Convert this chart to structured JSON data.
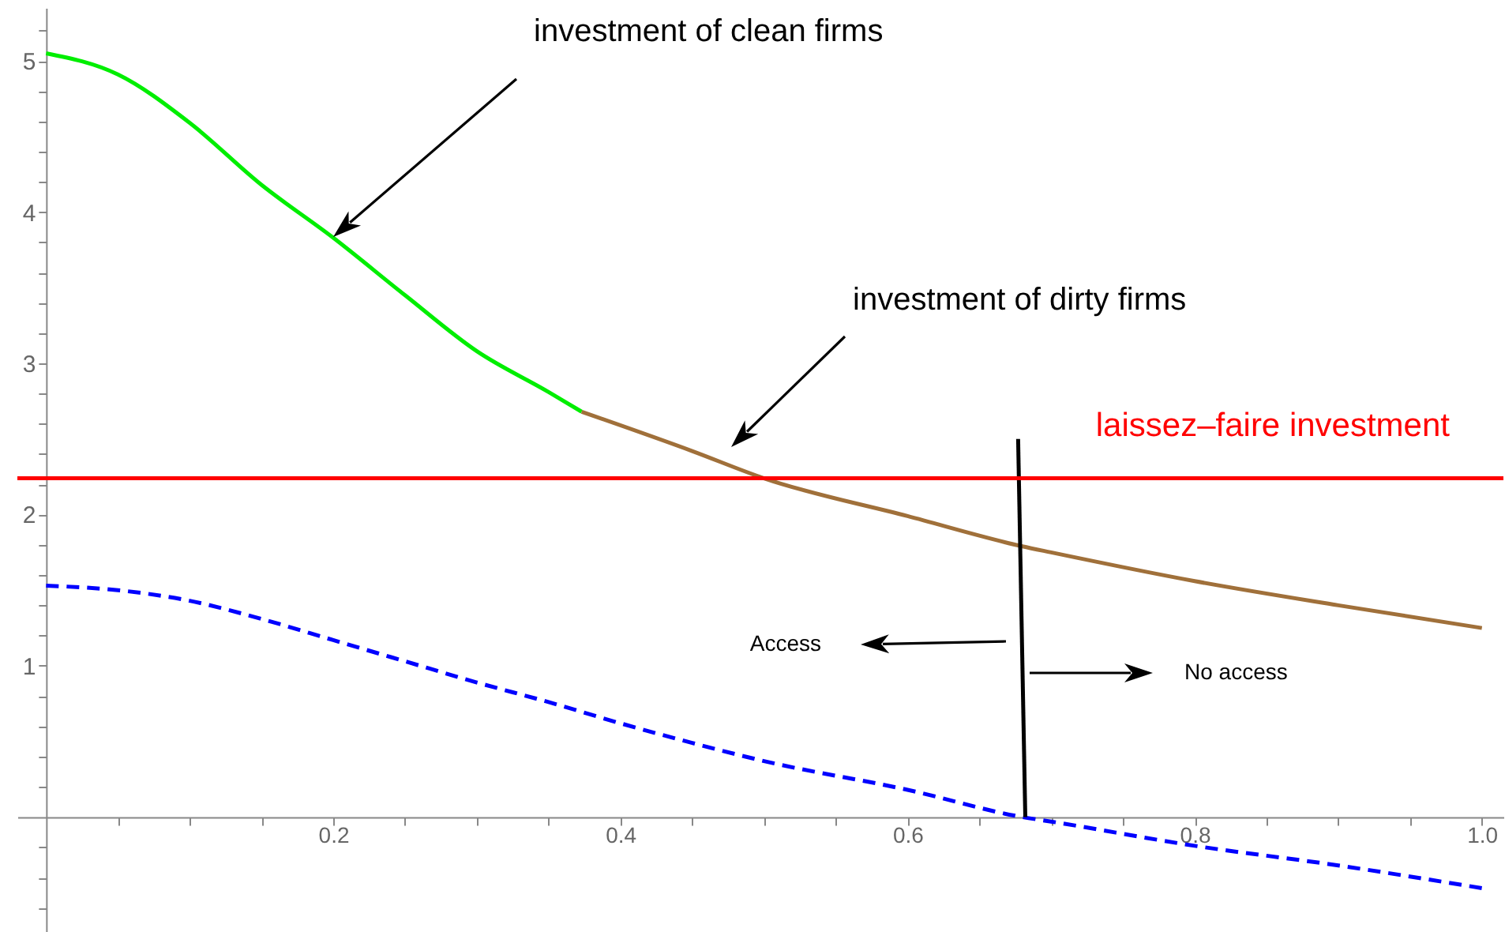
{
  "chart_data": {
    "type": "line",
    "xlim": [
      -0.02,
      1.015
    ],
    "ylim": [
      -0.76,
      5.35
    ],
    "xticks": [
      {
        "value": 0.05,
        "label": null
      },
      {
        "value": 0.1,
        "label": null
      },
      {
        "value": 0.15,
        "label": null
      },
      0.2,
      {
        "value": 0.25,
        "label": null
      },
      {
        "value": 0.3,
        "label": null
      },
      {
        "value": 0.35,
        "label": null
      },
      0.4,
      {
        "value": 0.45,
        "label": null
      },
      {
        "value": 0.5,
        "label": null
      },
      {
        "value": 0.55,
        "label": null
      },
      0.6,
      {
        "value": 0.65,
        "label": null
      },
      {
        "value": 0.7,
        "label": null
      },
      {
        "value": 0.75,
        "label": null
      },
      0.8,
      {
        "value": 0.85,
        "label": null
      },
      {
        "value": 0.9,
        "label": null
      },
      {
        "value": 0.95,
        "label": null
      },
      {
        "value": 1,
        "label": "1.0"
      }
    ],
    "yticks": [
      {
        "value": -0.6,
        "label": null
      },
      {
        "value": -0.4,
        "label": null
      },
      {
        "value": -0.2,
        "label": null
      },
      {
        "value": 0.2,
        "label": null
      },
      {
        "value": 0.4,
        "label": null
      },
      {
        "value": 0.6,
        "label": null
      },
      {
        "value": 0.8,
        "label": null
      },
      1,
      {
        "value": 1.2,
        "label": null
      },
      {
        "value": 1.4,
        "label": null
      },
      {
        "value": 1.6,
        "label": null
      },
      {
        "value": 1.8,
        "label": null
      },
      2,
      {
        "value": 2.2,
        "label": null
      },
      {
        "value": 2.4,
        "label": null
      },
      {
        "value": 2.6,
        "label": null
      },
      {
        "value": 2.8,
        "label": null
      },
      3,
      {
        "value": 3.2,
        "label": null
      },
      {
        "value": 3.4,
        "label": null
      },
      {
        "value": 3.6,
        "label": null
      },
      {
        "value": 3.8,
        "label": null
      },
      4,
      {
        "value": 4.2,
        "label": null
      },
      {
        "value": 4.4,
        "label": null
      },
      {
        "value": 4.6,
        "label": null
      },
      {
        "value": 4.8,
        "label": null
      },
      5,
      {
        "value": 5.2,
        "label": null
      }
    ],
    "series": [
      {
        "color": "#00ee00",
        "x": [
          0,
          0.05,
          0.1,
          0.15,
          0.2,
          0.25,
          0.3,
          0.35,
          0.373
        ],
        "values": [
          5.05,
          4.91,
          4.59,
          4.18,
          3.83,
          3.45,
          3.08,
          2.81,
          2.68
        ]
      },
      {
        "color": "#a0703a",
        "x": [
          0.373,
          0.45,
          0.5,
          0.6,
          0.68,
          0.7,
          0.8,
          0.9,
          1
        ],
        "values": [
          2.68,
          2.42,
          2.24,
          1.99,
          1.79,
          1.75,
          1.56,
          1.4,
          1.25
        ]
      },
      {
        "color": "#0000ff",
        "line_style": "dashed",
        "x": [
          0,
          0.05,
          0.1,
          0.15,
          0.2,
          0.25,
          0.3,
          0.35,
          0.4,
          0.45,
          0.5,
          0.6,
          0.68,
          0.7,
          0.8,
          0.9,
          1
        ],
        "values": [
          1.53,
          1.5,
          1.43,
          1.31,
          1.17,
          1.03,
          0.89,
          0.76,
          0.62,
          0.49,
          0.37,
          0.18,
          0,
          -0.03,
          -0.19,
          -0.32,
          -0.47
        ]
      },
      {
        "color": "#000000",
        "x": [
          0.677,
          0.682
        ],
        "values": [
          2.5,
          0
        ]
      }
    ],
    "ref_lines": [
      {
        "axis": "y",
        "value": 2.24,
        "label": "laissez–faire investment",
        "color": "#ff0000"
      }
    ],
    "annotations": [
      "investment of clean firms",
      "investment of dirty firms",
      "Access",
      "No access"
    ]
  }
}
